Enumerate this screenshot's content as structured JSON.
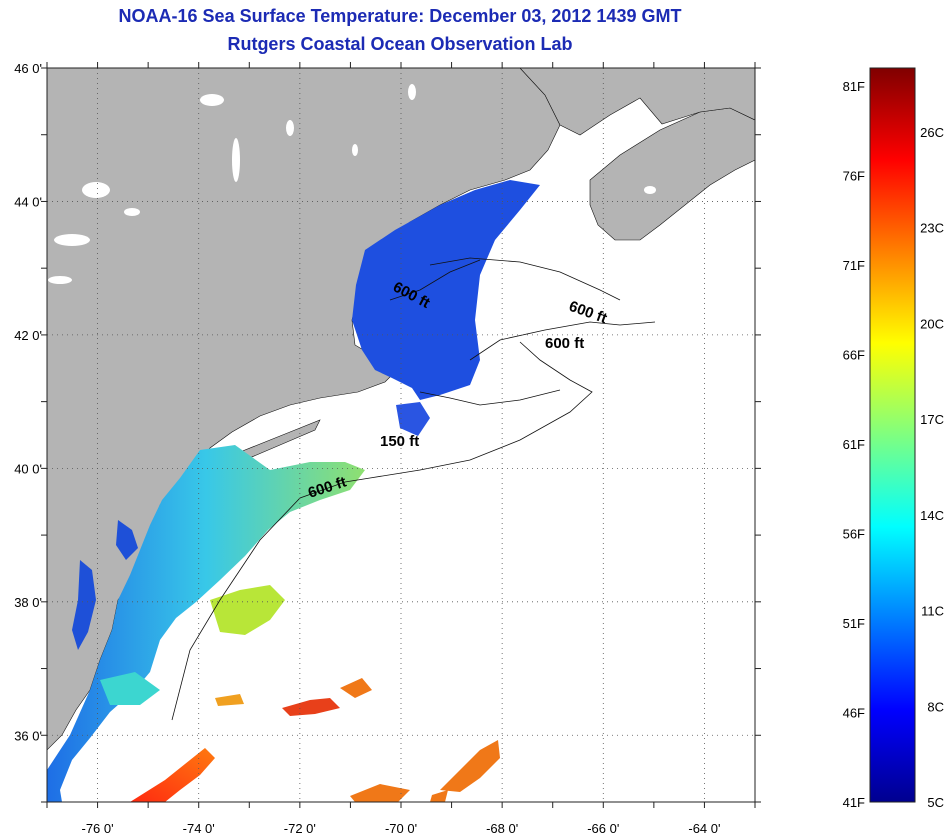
{
  "title": {
    "line1": "NOAA-16 Sea Surface Temperature:  December 03, 2012 1439 GMT",
    "line2": "Rutgers Coastal Ocean Observation Lab"
  },
  "map": {
    "lon_range": [
      -77,
      -63
    ],
    "lat_range": [
      35,
      46
    ],
    "lon_ticks": [
      "-76 0'",
      "-74 0'",
      "-72 0'",
      "-70 0'",
      "-68 0'",
      "-66 0'",
      "-64 0'"
    ],
    "lat_ticks": [
      "46 0'",
      "44 0'",
      "42 0'",
      "40 0'",
      "38 0'",
      "36 0'"
    ],
    "contour_labels": [
      "600 ft",
      "600 ft",
      "600 ft",
      "150 ft",
      "600 ft"
    ],
    "colors": {
      "land": "#b4b4b4",
      "no_data": "#ffffff",
      "grid": "#555555"
    }
  },
  "colorbar": {
    "fahrenheit_labels": [
      "81F",
      "76F",
      "71F",
      "66F",
      "61F",
      "56F",
      "51F",
      "46F",
      "41F"
    ],
    "celsius_labels": [
      "26C",
      "23C",
      "20C",
      "17C",
      "14C",
      "11C",
      "8C",
      "5C"
    ],
    "range_f": [
      41,
      82
    ],
    "range_c": [
      5,
      28
    ]
  }
}
